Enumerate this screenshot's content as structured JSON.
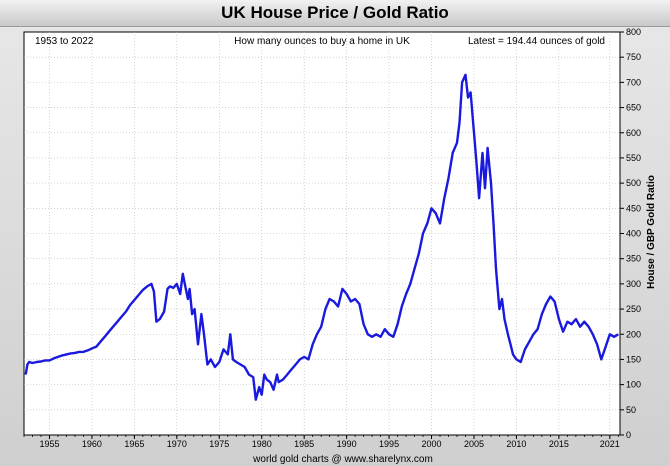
{
  "chart_data": {
    "type": "line",
    "title": "UK House Price / Gold Ratio",
    "annotations": {
      "left": "1953 to 2022",
      "center": "How many ounces to buy a home in UK",
      "right": "Latest = 194.44 ounces of gold"
    },
    "ylabel": "House / GBP Gold Ratio",
    "footer": "world gold charts @ www.sharelynx.com",
    "ylim": [
      0,
      800
    ],
    "xlim": [
      1952.0,
      2022.2
    ],
    "y_ticks": [
      0,
      50,
      100,
      150,
      200,
      250,
      300,
      350,
      400,
      450,
      500,
      550,
      600,
      650,
      700,
      750,
      800
    ],
    "x_ticks": [
      1955,
      1960,
      1965,
      1970,
      1975,
      1980,
      1985,
      1990,
      1995,
      2000,
      2005,
      2010,
      2015,
      2021
    ],
    "grid": true,
    "line_color": "#1a1adf",
    "series": [
      {
        "x": [
          1952.2,
          1952.4,
          1952.6,
          1953.0,
          1953.5,
          1954.0,
          1954.5,
          1955.0,
          1955.5,
          1956.0,
          1956.5,
          1957.0,
          1957.5,
          1958.0,
          1958.5,
          1959.0,
          1959.5,
          1960.0,
          1960.5,
          1961.0,
          1961.5,
          1962.0,
          1962.5,
          1963.0,
          1963.5,
          1964.0,
          1964.5,
          1965.0,
          1965.5,
          1966.0,
          1966.5,
          1967.0,
          1967.3,
          1967.6,
          1968.0,
          1968.5,
          1968.9,
          1969.2,
          1969.6,
          1970.0,
          1970.4,
          1970.7,
          1971.0,
          1971.3,
          1971.5,
          1971.8,
          1972.1,
          1972.5,
          1972.9,
          1973.2,
          1973.6,
          1974.0,
          1974.5,
          1975.0,
          1975.5,
          1976.0,
          1976.3,
          1976.6,
          1977.0,
          1977.5,
          1978.0,
          1978.5,
          1979.0,
          1979.3,
          1979.7,
          1980.0,
          1980.3,
          1980.6,
          1981.0,
          1981.4,
          1981.8,
          1982.0,
          1982.5,
          1983.0,
          1983.5,
          1984.0,
          1984.5,
          1985.0,
          1985.5,
          1986.0,
          1986.5,
          1987.0,
          1987.5,
          1988.0,
          1988.5,
          1989.0,
          1989.5,
          1990.0,
          1990.5,
          1991.0,
          1991.5,
          1992.0,
          1992.5,
          1993.0,
          1993.5,
          1994.0,
          1994.5,
          1995.0,
          1995.5,
          1996.0,
          1996.5,
          1997.0,
          1997.5,
          1998.0,
          1998.5,
          1999.0,
          1999.5,
          2000.0,
          2000.5,
          2001.0,
          2001.5,
          2002.0,
          2002.5,
          2003.0,
          2003.3,
          2003.6,
          2004.0,
          2004.3,
          2004.6,
          2005.0,
          2005.3,
          2005.6,
          2006.0,
          2006.3,
          2006.6,
          2007.0,
          2007.3,
          2007.6,
          2008.0,
          2008.3,
          2008.6,
          2009.0,
          2009.3,
          2009.6,
          2010.0,
          2010.5,
          2011.0,
          2011.5,
          2012.0,
          2012.5,
          2013.0,
          2013.5,
          2014.0,
          2014.5,
          2015.0,
          2015.5,
          2016.0,
          2016.5,
          2017.0,
          2017.5,
          2018.0,
          2018.5,
          2019.0,
          2019.5,
          2020.0,
          2020.5,
          2021.0,
          2021.5,
          2022.0
        ],
        "values": [
          120,
          140,
          145,
          143,
          145,
          146,
          148,
          148,
          152,
          155,
          158,
          160,
          162,
          163,
          165,
          165,
          168,
          172,
          175,
          185,
          195,
          205,
          215,
          225,
          235,
          245,
          258,
          268,
          278,
          288,
          295,
          300,
          285,
          225,
          230,
          245,
          290,
          295,
          292,
          300,
          280,
          320,
          295,
          270,
          290,
          240,
          250,
          180,
          240,
          200,
          140,
          150,
          135,
          145,
          170,
          160,
          200,
          150,
          145,
          140,
          135,
          120,
          115,
          70,
          95,
          80,
          120,
          110,
          105,
          90,
          120,
          105,
          110,
          120,
          130,
          140,
          150,
          155,
          150,
          180,
          200,
          215,
          250,
          270,
          265,
          255,
          290,
          280,
          265,
          270,
          260,
          220,
          200,
          195,
          200,
          195,
          210,
          200,
          195,
          220,
          255,
          280,
          300,
          330,
          360,
          400,
          420,
          450,
          440,
          420,
          470,
          510,
          560,
          580,
          620,
          700,
          715,
          670,
          680,
          600,
          540,
          470,
          560,
          490,
          570,
          500,
          420,
          330,
          250,
          270,
          230,
          200,
          180,
          160,
          150,
          145,
          170,
          185,
          200,
          210,
          240,
          260,
          275,
          265,
          230,
          205,
          225,
          220,
          230,
          215,
          225,
          215,
          200,
          180,
          150,
          175,
          200,
          195,
          200
        ]
      }
    ]
  }
}
